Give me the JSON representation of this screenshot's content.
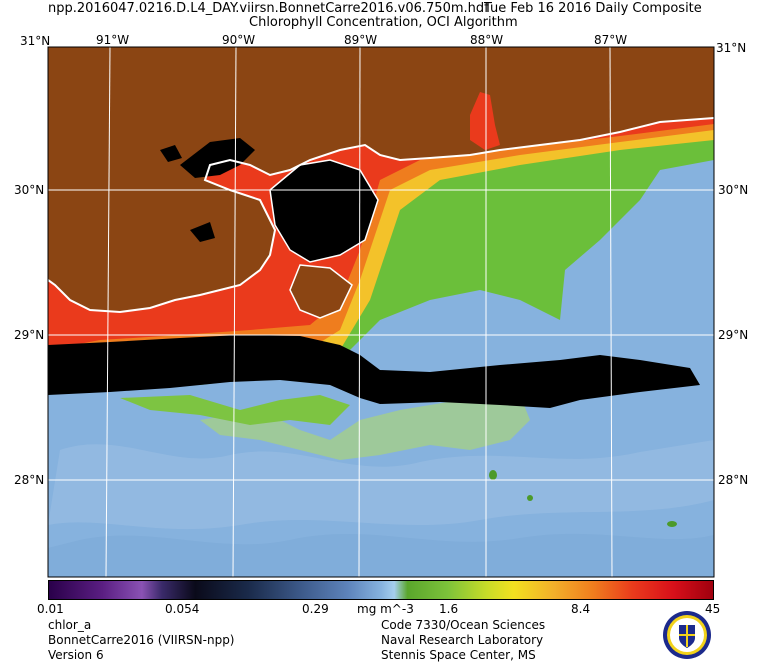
{
  "header": {
    "line1_left": "npp.2016047.0216.D.L4_DAY.viirsn.BonnetCarre2016.v06.750m.hdf",
    "line1_right": "Tue Feb 16 2016 Daily Composite",
    "line2": "Chlorophyll Concentration, OCI Algorithm"
  },
  "map": {
    "top_lon_labels": [
      "91°W",
      "90°W",
      "89°W",
      "88°W",
      "87°W"
    ],
    "corner_top_left": "31°N",
    "corner_top_right": "31°N",
    "left_lat_labels": [
      "30°N",
      "29°N",
      "28°N"
    ],
    "right_lat_labels": [
      "30°N",
      "29°N",
      "28°N"
    ],
    "colors": {
      "land": "#8b4513",
      "no_data": "#000000",
      "coastline": "#ffffff",
      "graticule": "#ffffff"
    }
  },
  "colorbar": {
    "ticks": [
      "0.01",
      "0.054",
      "0.29",
      "1.6",
      "8.4",
      "45"
    ],
    "units": "mg m^-3"
  },
  "footer": {
    "left": [
      "chlor_a",
      "BonnetCarre2016 (VIIRSN-npp)",
      "Version 6"
    ],
    "right": [
      "Code 7330/Ocean Sciences",
      "Naval Research Laboratory",
      "Stennis Space Center, MS"
    ]
  }
}
